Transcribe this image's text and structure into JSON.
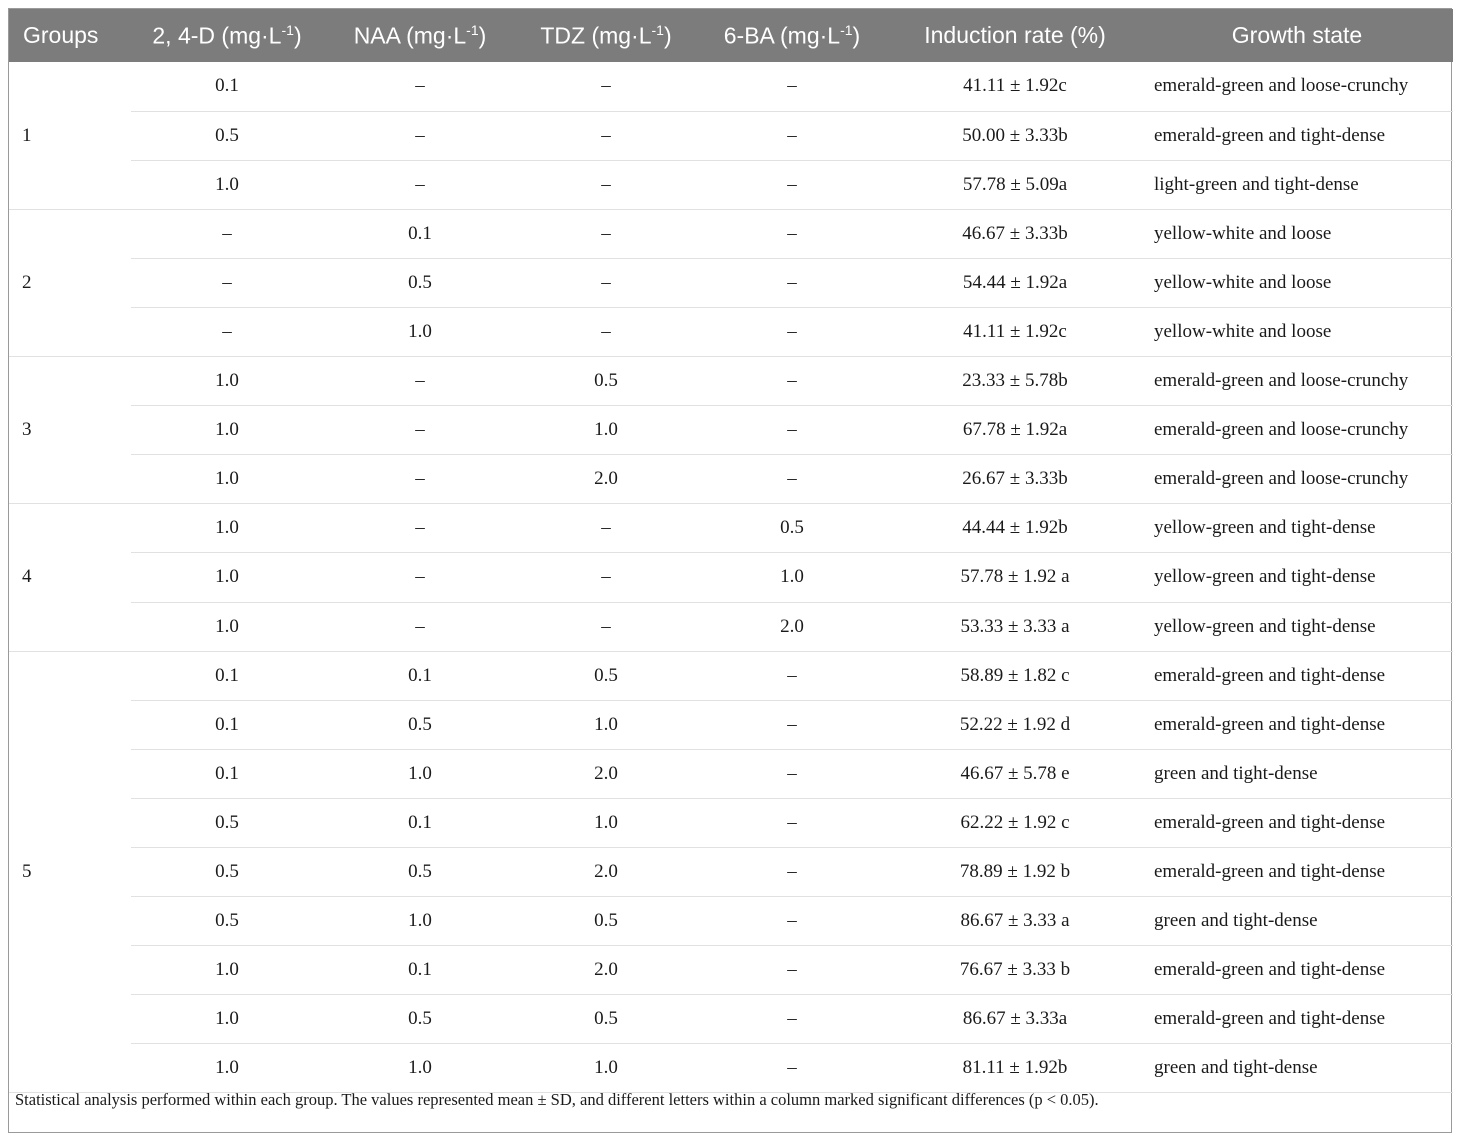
{
  "table": {
    "headers": {
      "groups": "Groups",
      "d24_main": "2, 4-D (mg·L",
      "naa_main": "NAA (mg·L",
      "tdz_main": "TDZ (mg·L",
      "ba6_main": "6-BA (mg·L",
      "unit_sup": "-1",
      "unit_close": ")",
      "induction_rate": "Induction rate (%)",
      "growth_state": "Growth state"
    },
    "rows": [
      {
        "group": "",
        "d24": "0.1",
        "naa": "–",
        "tdz": "–",
        "ba6": "–",
        "rate": "41.11 ± 1.92c",
        "state": "emerald-green and loose-crunchy"
      },
      {
        "group": "1",
        "d24": "0.5",
        "naa": "–",
        "tdz": "–",
        "ba6": "–",
        "rate": "50.00 ± 3.33b",
        "state": "emerald-green and tight-dense"
      },
      {
        "group": "",
        "d24": "1.0",
        "naa": "–",
        "tdz": "–",
        "ba6": "–",
        "rate": "57.78 ± 5.09a",
        "state": "light-green and tight-dense"
      },
      {
        "group": "",
        "d24": "–",
        "naa": "0.1",
        "tdz": "–",
        "ba6": "–",
        "rate": "46.67 ± 3.33b",
        "state": "yellow-white and loose"
      },
      {
        "group": "2",
        "d24": "–",
        "naa": "0.5",
        "tdz": "–",
        "ba6": "–",
        "rate": "54.44 ± 1.92a",
        "state": "yellow-white and loose"
      },
      {
        "group": "",
        "d24": "–",
        "naa": "1.0",
        "tdz": "–",
        "ba6": "–",
        "rate": "41.11 ± 1.92c",
        "state": "yellow-white and loose"
      },
      {
        "group": "",
        "d24": "1.0",
        "naa": "–",
        "tdz": "0.5",
        "ba6": "–",
        "rate": "23.33 ± 5.78b",
        "state": "emerald-green and loose-crunchy"
      },
      {
        "group": "3",
        "d24": "1.0",
        "naa": "–",
        "tdz": "1.0",
        "ba6": "–",
        "rate": "67.78 ± 1.92a",
        "state": "emerald-green and loose-crunchy"
      },
      {
        "group": "",
        "d24": "1.0",
        "naa": "–",
        "tdz": "2.0",
        "ba6": "–",
        "rate": "26.67 ± 3.33b",
        "state": "emerald-green and loose-crunchy"
      },
      {
        "group": "",
        "d24": "1.0",
        "naa": "–",
        "tdz": "–",
        "ba6": "0.5",
        "rate": "44.44 ± 1.92b",
        "state": "yellow-green and tight-dense"
      },
      {
        "group": "4",
        "d24": "1.0",
        "naa": "–",
        "tdz": "–",
        "ba6": "1.0",
        "rate": "57.78 ± 1.92 a",
        "state": "yellow-green and tight-dense"
      },
      {
        "group": "",
        "d24": "1.0",
        "naa": "–",
        "tdz": "–",
        "ba6": "2.0",
        "rate": "53.33 ± 3.33 a",
        "state": "yellow-green and tight-dense"
      },
      {
        "group": "",
        "d24": "0.1",
        "naa": "0.1",
        "tdz": "0.5",
        "ba6": "–",
        "rate": "58.89 ± 1.82 c",
        "state": "emerald-green and tight-dense"
      },
      {
        "group": "",
        "d24": "0.1",
        "naa": "0.5",
        "tdz": "1.0",
        "ba6": "–",
        "rate": "52.22 ± 1.92 d",
        "state": "emerald-green and tight-dense"
      },
      {
        "group": "",
        "d24": "0.1",
        "naa": "1.0",
        "tdz": "2.0",
        "ba6": "–",
        "rate": "46.67 ± 5.78 e",
        "state": "green and tight-dense"
      },
      {
        "group": "",
        "d24": "0.5",
        "naa": "0.1",
        "tdz": "1.0",
        "ba6": "–",
        "rate": "62.22 ± 1.92 c",
        "state": "emerald-green and tight-dense"
      },
      {
        "group": "5",
        "d24": "0.5",
        "naa": "0.5",
        "tdz": "2.0",
        "ba6": "–",
        "rate": "78.89 ± 1.92 b",
        "state": "emerald-green and tight-dense"
      },
      {
        "group": "",
        "d24": "0.5",
        "naa": "1.0",
        "tdz": "0.5",
        "ba6": "–",
        "rate": "86.67 ± 3.33 a",
        "state": "green and tight-dense"
      },
      {
        "group": "",
        "d24": "1.0",
        "naa": "0.1",
        "tdz": "2.0",
        "ba6": "–",
        "rate": "76.67 ± 3.33 b",
        "state": "emerald-green and tight-dense"
      },
      {
        "group": "",
        "d24": "1.0",
        "naa": "0.5",
        "tdz": "0.5",
        "ba6": "–",
        "rate": "86.67 ± 3.33a",
        "state": "emerald-green and tight-dense"
      },
      {
        "group": "",
        "d24": "1.0",
        "naa": "1.0",
        "tdz": "1.0",
        "ba6": "–",
        "rate": "81.11 ± 1.92b",
        "state": "green and tight-dense"
      }
    ],
    "footnote": "Statistical analysis performed within each group. The values represented mean ± SD, and different letters within a column marked significant differences (p < 0.05)."
  },
  "colors": {
    "header_bg": "#7c7c7c",
    "header_text": "#ffffff",
    "row_divider": "#e1e1e1",
    "frame_border": "#9a9a9a"
  }
}
